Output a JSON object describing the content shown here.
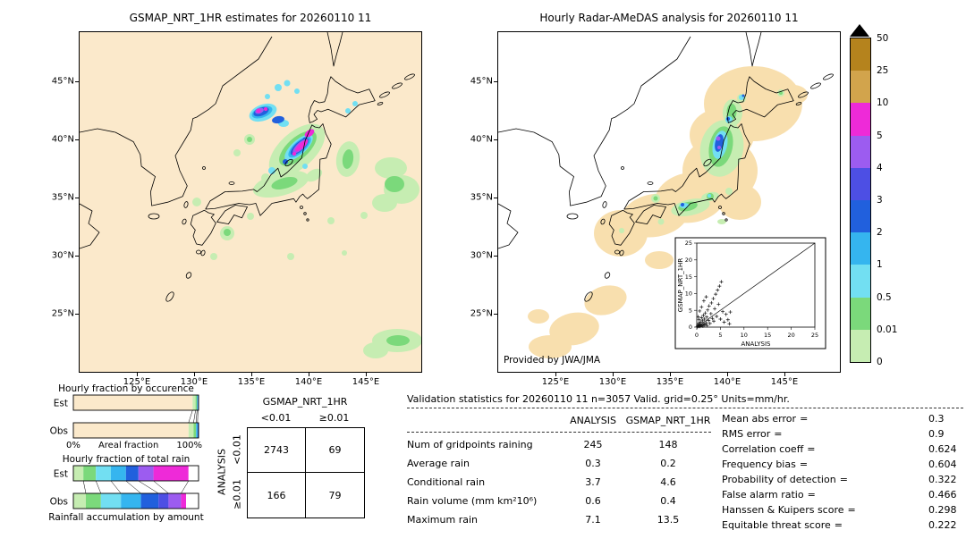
{
  "left_map": {
    "title": "GSMAP_NRT_1HR estimates for 20260110 11",
    "lat_ticks": [
      "45°N",
      "40°N",
      "35°N",
      "30°N",
      "25°N"
    ],
    "lon_ticks": [
      "125°E",
      "130°E",
      "135°E",
      "140°E",
      "145°E"
    ],
    "background_color": "#fbe9cb"
  },
  "right_map": {
    "title": "Hourly Radar-AMeDAS analysis for 20260110 11",
    "lat_ticks": [
      "45°N",
      "40°N",
      "35°N",
      "30°N",
      "25°N"
    ],
    "lon_ticks": [
      "125°E",
      "130°E",
      "135°E",
      "140°E",
      "145°E"
    ],
    "credit": "Provided by JWA/JMA",
    "background_color": "#ffffff",
    "coverage_color": "#f8dfae"
  },
  "colorbar": {
    "tick_labels": [
      "50",
      "25",
      "10",
      "5",
      "4",
      "3",
      "2",
      "1",
      "0.5",
      "0.01",
      "0"
    ],
    "segment_colors": [
      "#b5831d",
      "#d2a44c",
      "#ee2ad8",
      "#9c5cf0",
      "#4d4fe4",
      "#2160dd",
      "#35b5ef",
      "#72dff2",
      "#7bd97b",
      "#c6edb2"
    ],
    "overflow_color": "#000000"
  },
  "occurrence": {
    "title": "Hourly fraction by occurence",
    "axis_left": "0%",
    "axis_right": "100%",
    "axis_label": "Areal fraction"
  },
  "accumulation": {
    "title": "Hourly fraction of total rain",
    "caption": "Rainfall accumulation by amount"
  },
  "contingency": {
    "title": "GSMAP_NRT_1HR",
    "col_headers": [
      "<0.01",
      "≥0.01"
    ],
    "row_axis": "ANALYSIS",
    "row_headers": [
      "<0.01",
      "≥0.01"
    ],
    "values": [
      [
        "2743",
        "69"
      ],
      [
        "166",
        "79"
      ]
    ]
  },
  "validation": {
    "title": "Validation statistics for 20260110 11  n=3057 Valid. grid=0.25° Units=mm/hr.",
    "col_headers": [
      "ANALYSIS",
      "GSMAP_NRT_1HR"
    ],
    "equals": "=",
    "rows": [
      {
        "label": "Num of gridpoints raining",
        "analysis": "245",
        "gsmap": "148"
      },
      {
        "label": "Average rain",
        "analysis": "0.3",
        "gsmap": "0.2"
      },
      {
        "label": "Conditional rain",
        "analysis": "3.7",
        "gsmap": "4.6"
      },
      {
        "label": "Rain volume (mm km²10⁶)",
        "analysis": "0.6",
        "gsmap": "0.4"
      },
      {
        "label": "Maximum rain",
        "analysis": "7.1",
        "gsmap": "13.5"
      }
    ],
    "stats": [
      {
        "label": "Mean abs error",
        "value": "0.3"
      },
      {
        "label": "RMS error",
        "value": "0.9"
      },
      {
        "label": "Correlation coeff",
        "value": "0.624"
      },
      {
        "label": "Frequency bias",
        "value": "0.604"
      },
      {
        "label": "Probability of detection",
        "value": "0.322"
      },
      {
        "label": "False alarm ratio",
        "value": "0.466"
      },
      {
        "label": "Hanssen & Kuipers score",
        "value": "0.298"
      },
      {
        "label": "Equitable threat score",
        "value": "0.222"
      }
    ]
  },
  "inset": {
    "xlabel": "ANALYSIS",
    "ylabel": "GSMAP_NRT_1HR"
  },
  "chart_data": [
    {
      "name": "gsmap_map",
      "type": "heatmap",
      "title": "GSMAP_NRT_1HR estimates for 20260110 11",
      "x_ticks": [
        "125°E",
        "130°E",
        "135°E",
        "140°E",
        "145°E"
      ],
      "y_ticks": [
        "45°N",
        "40°N",
        "35°N",
        "30°N",
        "25°N"
      ],
      "units": "mm/hr",
      "scale_ticks": [
        50,
        25,
        10,
        5,
        4,
        3,
        2,
        1,
        0.5,
        0.01,
        0
      ]
    },
    {
      "name": "radar_amedas_map",
      "type": "heatmap",
      "title": "Hourly Radar-AMeDAS analysis for 20260110 11",
      "x_ticks": [
        "125°E",
        "130°E",
        "135°E",
        "140°E",
        "145°E"
      ],
      "y_ticks": [
        "45°N",
        "40°N",
        "35°N",
        "30°N",
        "25°N"
      ],
      "units": "mm/hr",
      "credit": "Provided by JWA/JMA"
    },
    {
      "name": "gsmap_vs_analysis",
      "type": "scatter",
      "xlabel": "ANALYSIS",
      "ylabel": "GSMAP_NRT_1HR",
      "xlim": [
        0,
        25
      ],
      "ylim": [
        0,
        25
      ],
      "x_ticks": [
        0,
        5,
        10,
        15,
        20,
        25
      ],
      "y_ticks": [
        0,
        5,
        10,
        15,
        20,
        25
      ],
      "ref_line": "y=x",
      "points": [
        [
          0.1,
          0.1
        ],
        [
          0.2,
          0.5
        ],
        [
          0.3,
          0.2
        ],
        [
          0.4,
          1.1
        ],
        [
          0.5,
          0.3
        ],
        [
          0.5,
          2.2
        ],
        [
          0.6,
          0.8
        ],
        [
          0.7,
          0.2
        ],
        [
          0.8,
          1.5
        ],
        [
          0.9,
          0.4
        ],
        [
          1.0,
          2.8
        ],
        [
          1.1,
          0.6
        ],
        [
          1.2,
          1.9
        ],
        [
          1.3,
          0.3
        ],
        [
          1.4,
          3.5
        ],
        [
          1.5,
          1.0
        ],
        [
          1.6,
          2.4
        ],
        [
          1.7,
          0.7
        ],
        [
          1.8,
          4.2
        ],
        [
          2.0,
          1.3
        ],
        [
          2.1,
          3.0
        ],
        [
          2.2,
          0.5
        ],
        [
          2.3,
          5.1
        ],
        [
          2.5,
          2.0
        ],
        [
          2.6,
          6.3
        ],
        [
          2.8,
          1.1
        ],
        [
          3.0,
          4.0
        ],
        [
          3.1,
          7.2
        ],
        [
          3.3,
          2.6
        ],
        [
          3.5,
          8.5
        ],
        [
          3.6,
          1.8
        ],
        [
          3.8,
          5.5
        ],
        [
          4.0,
          9.8
        ],
        [
          4.2,
          3.2
        ],
        [
          4.4,
          11.0
        ],
        [
          4.6,
          6.8
        ],
        [
          4.8,
          12.2
        ],
        [
          5.0,
          2.4
        ],
        [
          5.2,
          13.5
        ],
        [
          5.5,
          4.6
        ],
        [
          5.8,
          1.5
        ],
        [
          6.2,
          3.8
        ],
        [
          6.6,
          2.2
        ],
        [
          6.9,
          1.0
        ],
        [
          7.1,
          4.5
        ],
        [
          0.3,
          3.1
        ],
        [
          0.6,
          4.8
        ],
        [
          1.0,
          6.0
        ],
        [
          1.5,
          7.8
        ],
        [
          2.0,
          9.0
        ]
      ]
    },
    {
      "name": "areal_fraction",
      "type": "bar",
      "stacked": true,
      "unit": "%",
      "categories": [
        "Est",
        "Obs"
      ],
      "rows": [
        {
          "label": "Est",
          "segments": [
            {
              "color": "#fbe9cb",
              "pct": 95.2
            },
            {
              "color": "#c6edb2",
              "pct": 2.4
            },
            {
              "color": "#7bd97b",
              "pct": 1.2
            },
            {
              "color": "#35b5ef",
              "pct": 0.7
            },
            {
              "color": "#2160dd",
              "pct": 0.5
            }
          ]
        },
        {
          "label": "Obs",
          "segments": [
            {
              "color": "#fbe9cb",
              "pct": 92.0
            },
            {
              "color": "#c6edb2",
              "pct": 4.0
            },
            {
              "color": "#7bd97b",
              "pct": 2.0
            },
            {
              "color": "#35b5ef",
              "pct": 1.2
            },
            {
              "color": "#2160dd",
              "pct": 0.8
            }
          ]
        }
      ]
    },
    {
      "name": "rain_accumulation_fraction",
      "type": "bar",
      "stacked": true,
      "unit": "%",
      "categories": [
        "Est",
        "Obs"
      ],
      "rows": [
        {
          "label": "Est",
          "segments": [
            {
              "color": "#c6edb2",
              "pct": 8
            },
            {
              "color": "#7bd97b",
              "pct": 10
            },
            {
              "color": "#72dff2",
              "pct": 12
            },
            {
              "color": "#35b5ef",
              "pct": 12
            },
            {
              "color": "#2160dd",
              "pct": 10
            },
            {
              "color": "#9c5cf0",
              "pct": 12
            },
            {
              "color": "#ee2ad8",
              "pct": 28
            },
            {
              "color": "#ffffff",
              "pct": 8
            }
          ]
        },
        {
          "label": "Obs",
          "segments": [
            {
              "color": "#c6edb2",
              "pct": 10
            },
            {
              "color": "#7bd97b",
              "pct": 12
            },
            {
              "color": "#72dff2",
              "pct": 16
            },
            {
              "color": "#35b5ef",
              "pct": 16
            },
            {
              "color": "#2160dd",
              "pct": 14
            },
            {
              "color": "#4d4fe4",
              "pct": 8
            },
            {
              "color": "#9c5cf0",
              "pct": 10
            },
            {
              "color": "#ee2ad8",
              "pct": 4
            },
            {
              "color": "#ffffff",
              "pct": 10
            }
          ]
        }
      ]
    },
    {
      "name": "contingency_table",
      "type": "table",
      "title": "GSMAP_NRT_1HR",
      "row_axis": "ANALYSIS",
      "columns": [
        "<0.01",
        "≥0.01"
      ],
      "rows": [
        {
          "label": "<0.01",
          "values": [
            2743,
            69
          ]
        },
        {
          "label": "≥0.01",
          "values": [
            166,
            79
          ]
        }
      ]
    },
    {
      "name": "validation_statistics",
      "type": "table",
      "columns": [
        "ANALYSIS",
        "GSMAP_NRT_1HR"
      ],
      "n": 3057,
      "grid": "0.25°",
      "units": "mm/hr",
      "datetime": "20260110 11",
      "rows": [
        {
          "label": "Num of gridpoints raining",
          "values": [
            245,
            148
          ]
        },
        {
          "label": "Average rain",
          "values": [
            0.3,
            0.2
          ]
        },
        {
          "label": "Conditional rain",
          "values": [
            3.7,
            4.6
          ]
        },
        {
          "label": "Rain volume (mm km²10⁶)",
          "values": [
            0.6,
            0.4
          ]
        },
        {
          "label": "Maximum rain",
          "values": [
            7.1,
            13.5
          ]
        }
      ],
      "scores": {
        "mean_abs_error": 0.3,
        "rms_error": 0.9,
        "correlation_coeff": 0.624,
        "frequency_bias": 0.604,
        "probability_of_detection": 0.322,
        "false_alarm_ratio": 0.466,
        "hanssen_kuipers_score": 0.298,
        "equitable_threat_score": 0.222
      }
    }
  ]
}
